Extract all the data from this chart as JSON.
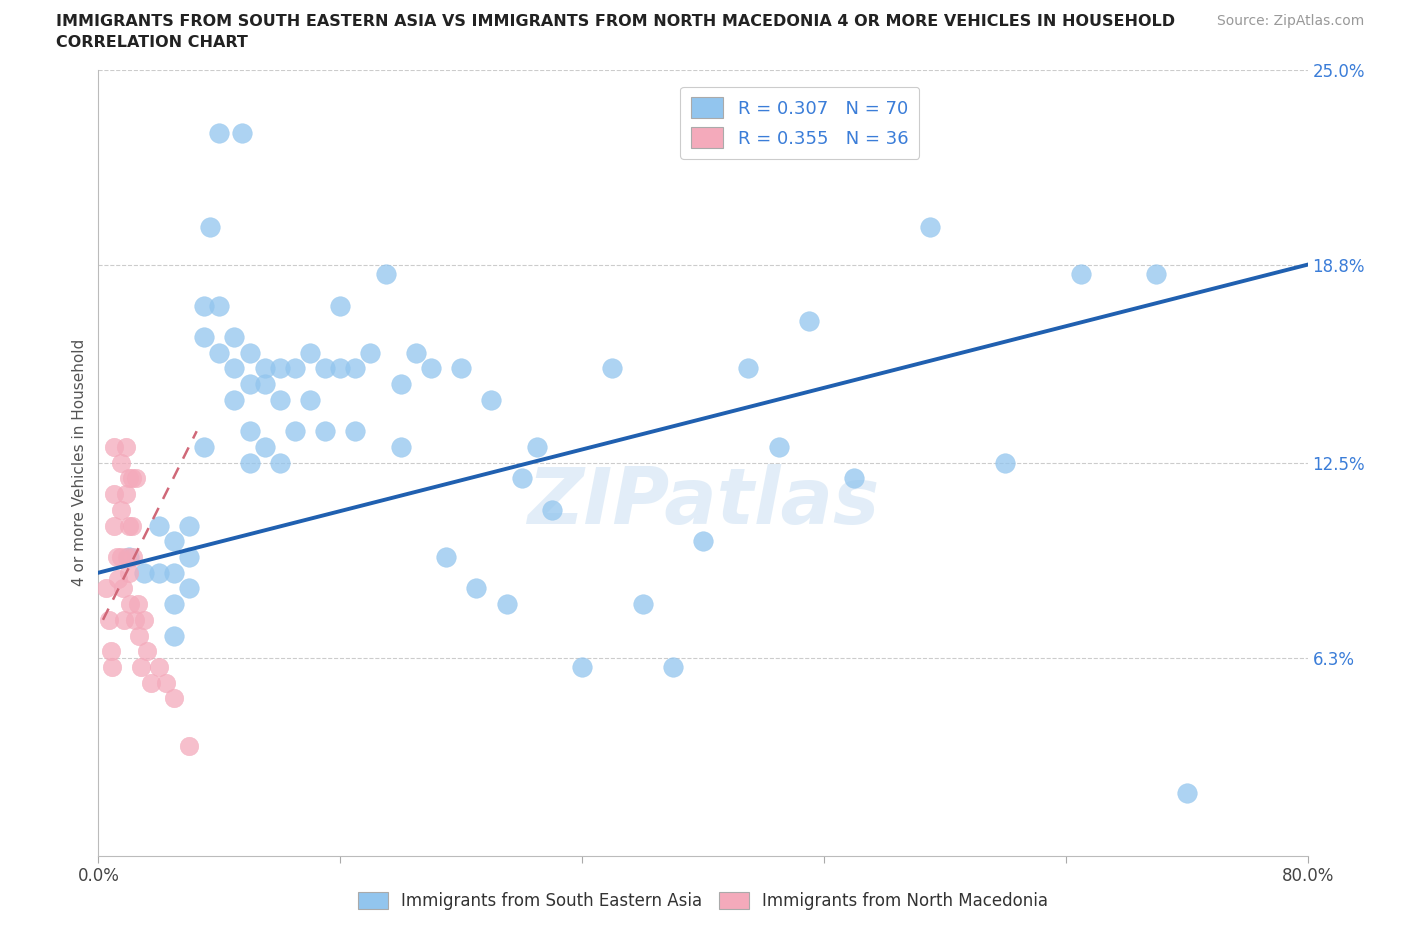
{
  "title_line1": "IMMIGRANTS FROM SOUTH EASTERN ASIA VS IMMIGRANTS FROM NORTH MACEDONIA 4 OR MORE VEHICLES IN HOUSEHOLD",
  "title_line2": "CORRELATION CHART",
  "source_text": "Source: ZipAtlas.com",
  "ylabel": "4 or more Vehicles in Household",
  "xlim": [
    0.0,
    0.8
  ],
  "ylim": [
    0.0,
    0.25
  ],
  "ytick_right_labels": [
    "25.0%",
    "18.8%",
    "12.5%",
    "6.3%"
  ],
  "ytick_right_values": [
    0.25,
    0.188,
    0.125,
    0.063
  ],
  "R_blue": 0.307,
  "N_blue": 70,
  "R_pink": 0.355,
  "N_pink": 36,
  "blue_color": "#92C5EE",
  "pink_color": "#F4AABB",
  "trend_blue_color": "#2060B0",
  "trend_pink_color": "#D06878",
  "watermark": "ZIPatlas",
  "blue_trend_x": [
    0.0,
    0.8
  ],
  "blue_trend_y": [
    0.09,
    0.188
  ],
  "pink_trend_x": [
    0.003,
    0.065
  ],
  "pink_trend_y": [
    0.075,
    0.135
  ],
  "blue_scatter_x": [
    0.02,
    0.03,
    0.04,
    0.04,
    0.05,
    0.05,
    0.05,
    0.05,
    0.06,
    0.06,
    0.06,
    0.07,
    0.07,
    0.07,
    0.08,
    0.08,
    0.09,
    0.09,
    0.09,
    0.1,
    0.1,
    0.1,
    0.1,
    0.11,
    0.11,
    0.11,
    0.12,
    0.12,
    0.12,
    0.13,
    0.13,
    0.14,
    0.14,
    0.15,
    0.15,
    0.16,
    0.16,
    0.17,
    0.17,
    0.18,
    0.19,
    0.2,
    0.2,
    0.21,
    0.22,
    0.23,
    0.24,
    0.25,
    0.26,
    0.27,
    0.28,
    0.29,
    0.3,
    0.32,
    0.34,
    0.36,
    0.38,
    0.4,
    0.43,
    0.45,
    0.47,
    0.5,
    0.55,
    0.6,
    0.65,
    0.7,
    0.72,
    0.074,
    0.08,
    0.095
  ],
  "blue_scatter_y": [
    0.095,
    0.09,
    0.105,
    0.09,
    0.1,
    0.09,
    0.08,
    0.07,
    0.105,
    0.095,
    0.085,
    0.175,
    0.165,
    0.13,
    0.175,
    0.16,
    0.165,
    0.155,
    0.145,
    0.16,
    0.15,
    0.135,
    0.125,
    0.155,
    0.15,
    0.13,
    0.155,
    0.145,
    0.125,
    0.155,
    0.135,
    0.16,
    0.145,
    0.155,
    0.135,
    0.175,
    0.155,
    0.155,
    0.135,
    0.16,
    0.185,
    0.15,
    0.13,
    0.16,
    0.155,
    0.095,
    0.155,
    0.085,
    0.145,
    0.08,
    0.12,
    0.13,
    0.11,
    0.06,
    0.155,
    0.08,
    0.06,
    0.1,
    0.155,
    0.13,
    0.17,
    0.12,
    0.2,
    0.125,
    0.185,
    0.185,
    0.02,
    0.2,
    0.23,
    0.23
  ],
  "pink_scatter_x": [
    0.005,
    0.007,
    0.008,
    0.009,
    0.01,
    0.01,
    0.01,
    0.012,
    0.013,
    0.015,
    0.015,
    0.015,
    0.016,
    0.017,
    0.018,
    0.018,
    0.019,
    0.02,
    0.02,
    0.02,
    0.021,
    0.022,
    0.022,
    0.023,
    0.024,
    0.025,
    0.026,
    0.027,
    0.028,
    0.03,
    0.032,
    0.035,
    0.04,
    0.045,
    0.05,
    0.06
  ],
  "pink_scatter_y": [
    0.085,
    0.075,
    0.065,
    0.06,
    0.13,
    0.115,
    0.105,
    0.095,
    0.088,
    0.125,
    0.11,
    0.095,
    0.085,
    0.075,
    0.13,
    0.115,
    0.095,
    0.12,
    0.105,
    0.09,
    0.08,
    0.12,
    0.105,
    0.095,
    0.075,
    0.12,
    0.08,
    0.07,
    0.06,
    0.075,
    0.065,
    0.055,
    0.06,
    0.055,
    0.05,
    0.035
  ]
}
